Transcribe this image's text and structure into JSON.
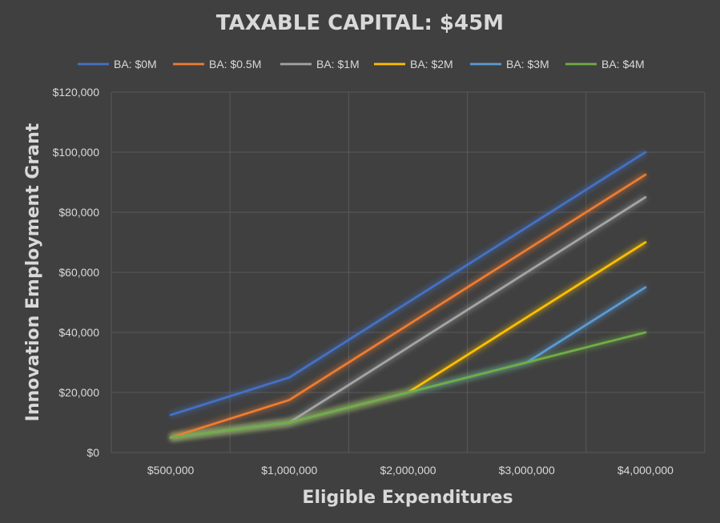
{
  "chart_data": {
    "type": "line",
    "title": "TAXABLE CAPITAL: $45M",
    "xlabel": "Eligible Expenditures",
    "ylabel": "Innovation Employment Grant",
    "categories": [
      "$500,000",
      "$1,000,000",
      "$2,000,000",
      "$3,000,000",
      "$4,000,000"
    ],
    "y_ticks": [
      "$0",
      "$20,000",
      "$40,000",
      "$60,000",
      "$80,000",
      "$100,000",
      "$120,000"
    ],
    "ylim": [
      0,
      120000
    ],
    "grid": true,
    "legend_position": "top",
    "series": [
      {
        "name": "BA: $0M",
        "color": "#4472c4",
        "values": [
          12500,
          25000,
          50000,
          75000,
          100000
        ]
      },
      {
        "name": "BA: $0.5M",
        "color": "#ed7d31",
        "values": [
          5000,
          17500,
          42500,
          67500,
          92500
        ]
      },
      {
        "name": "BA: $1M",
        "color": "#a5a5a5",
        "values": [
          5000,
          10000,
          35000,
          60000,
          85000
        ]
      },
      {
        "name": "BA: $2M",
        "color": "#ffc000",
        "values": [
          5000,
          10000,
          20000,
          45000,
          70000
        ]
      },
      {
        "name": "BA: $3M",
        "color": "#5b9bd5",
        "values": [
          5000,
          10000,
          20000,
          30000,
          55000
        ]
      },
      {
        "name": "BA: $4M",
        "color": "#70ad47",
        "values": [
          5000,
          10000,
          20000,
          30000,
          40000
        ]
      }
    ]
  }
}
